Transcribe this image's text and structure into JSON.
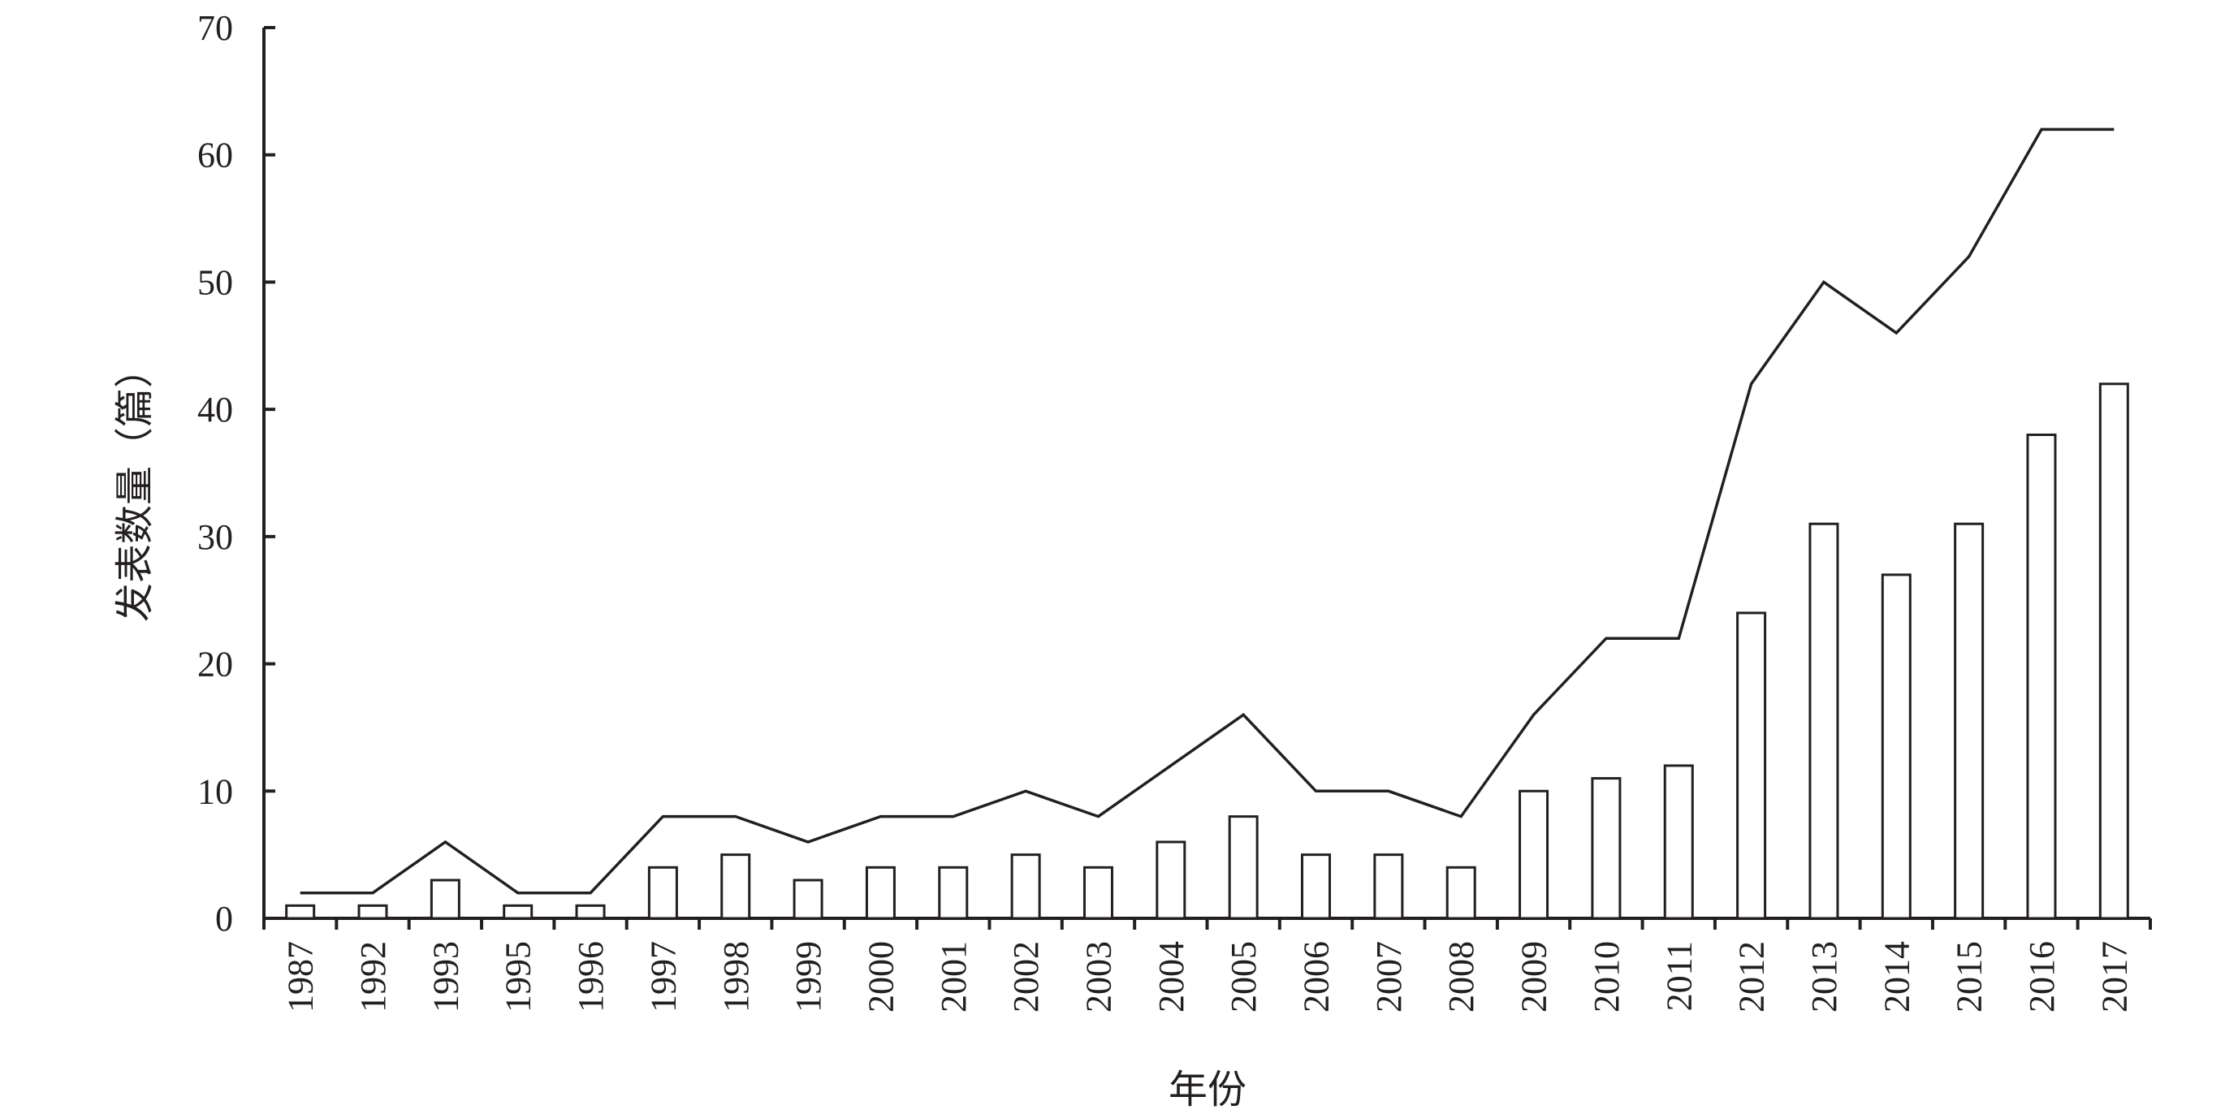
{
  "chart_data": {
    "type": "bar",
    "xlabel": "年份",
    "ylabel": "发表数量（篇）",
    "ylim": [
      0,
      70
    ],
    "yticks": [
      0,
      10,
      20,
      30,
      40,
      50,
      60,
      70
    ],
    "categories": [
      "1987",
      "1992",
      "1993",
      "1995",
      "1996",
      "1997",
      "1998",
      "1999",
      "2000",
      "2001",
      "2002",
      "2003",
      "2004",
      "2005",
      "2006",
      "2007",
      "2008",
      "2009",
      "2010",
      "2011",
      "2012",
      "2013",
      "2014",
      "2015",
      "2016",
      "2017"
    ],
    "series": [
      {
        "type": "bar",
        "values": [
          1,
          1,
          3,
          1,
          1,
          4,
          5,
          3,
          4,
          4,
          5,
          4,
          6,
          8,
          5,
          5,
          4,
          10,
          11,
          12,
          24,
          31,
          27,
          31,
          38,
          42
        ]
      },
      {
        "type": "line",
        "values": [
          2,
          2,
          6,
          2,
          2,
          8,
          8,
          6,
          8,
          8,
          10,
          8,
          12,
          16,
          10,
          10,
          8,
          16,
          22,
          22,
          42,
          50,
          46,
          52,
          62,
          62
        ]
      }
    ],
    "grid": false,
    "legend": "none"
  }
}
